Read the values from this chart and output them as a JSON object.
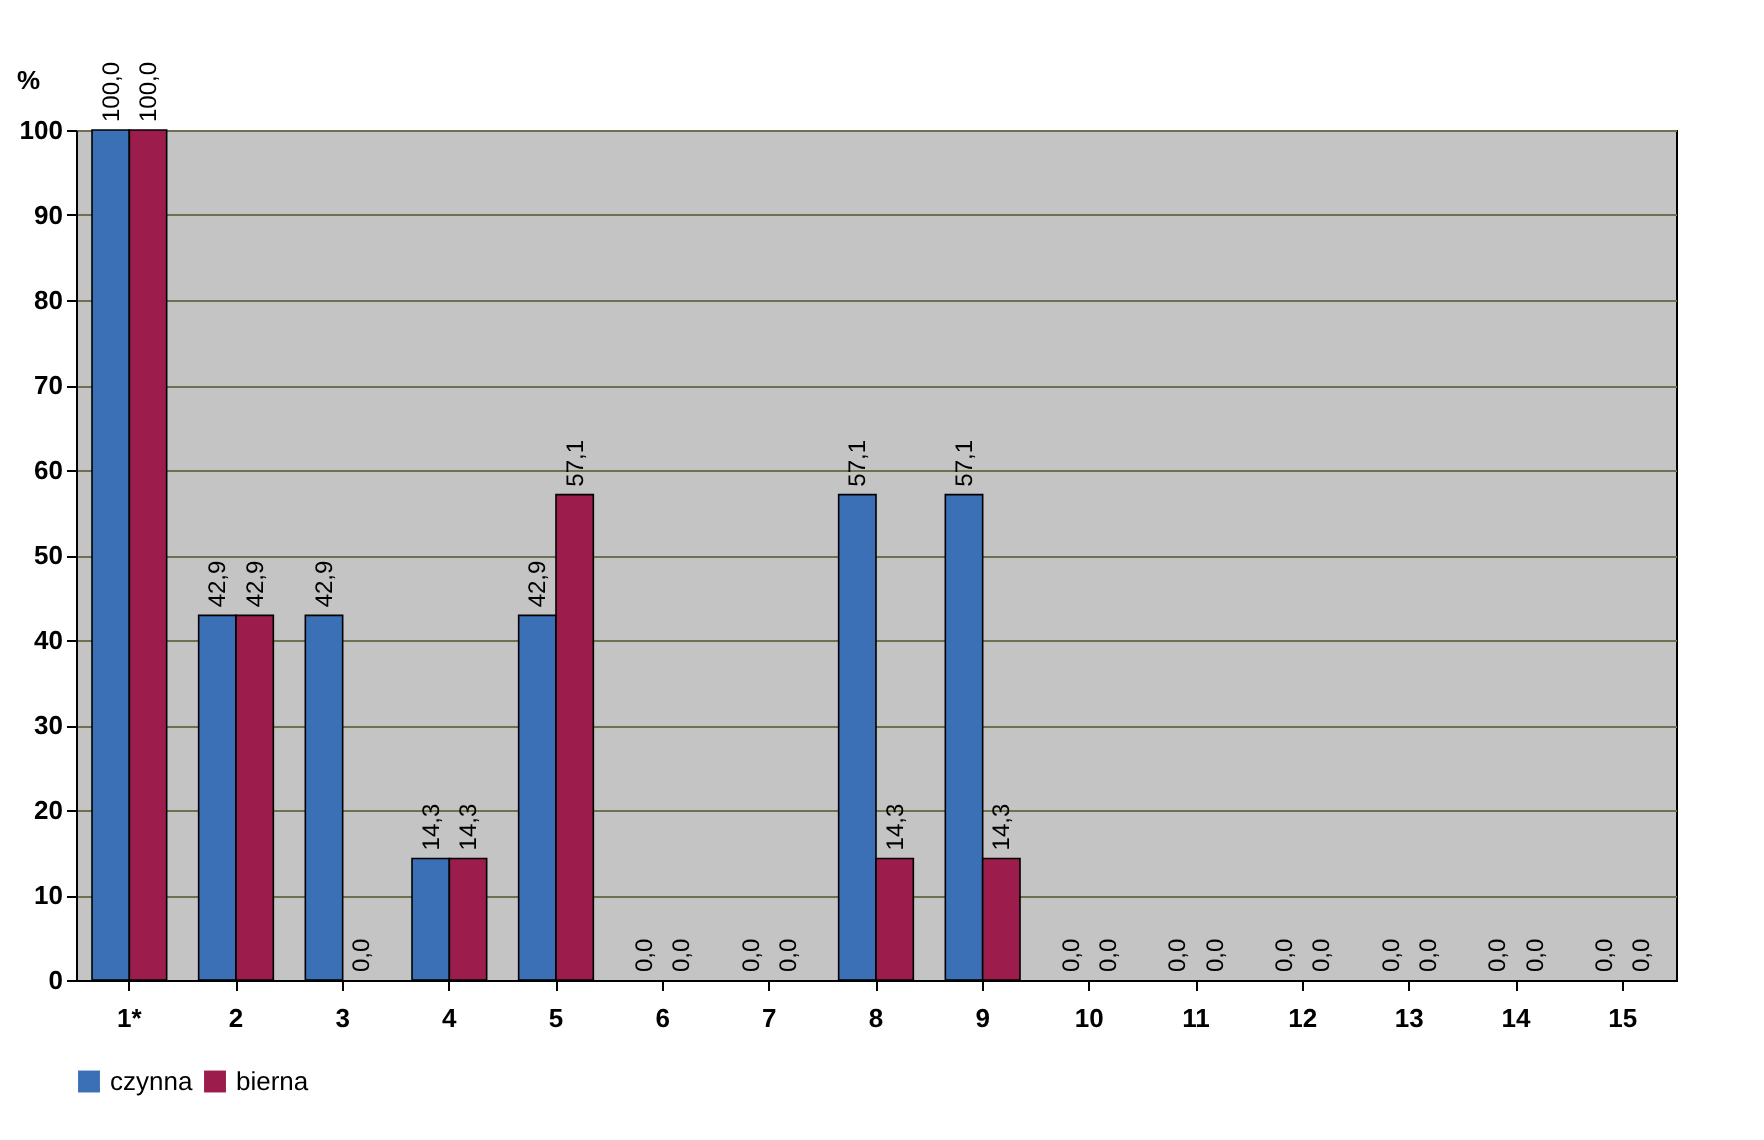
{
  "chart_data": {
    "type": "bar",
    "ylabel": "%",
    "categories": [
      "1*",
      "2",
      "3",
      "4",
      "5",
      "6",
      "7",
      "8",
      "9",
      "10",
      "11",
      "12",
      "13",
      "14",
      "15"
    ],
    "series": [
      {
        "name": "czynna",
        "color": "#3b6fb6",
        "values": [
          100,
          42.9,
          42.9,
          14.3,
          42.9,
          0,
          0,
          57.1,
          57.1,
          0,
          0,
          0,
          0,
          0,
          0
        ],
        "value_labels": [
          "100,0",
          "42,9",
          "42,9",
          "14,3",
          "42,9",
          "0,0",
          "0,0",
          "57,1",
          "57,1",
          "0,0",
          "0,0",
          "0,0",
          "0,0",
          "0,0",
          "0,0"
        ]
      },
      {
        "name": "bierna",
        "color": "#9c1c4c",
        "values": [
          100,
          42.9,
          0,
          14.3,
          57.1,
          0,
          0,
          14.3,
          14.3,
          0,
          0,
          0,
          0,
          0,
          0
        ],
        "value_labels": [
          "100,0",
          "42,9",
          "0,0",
          "14,3",
          "57,1",
          "0,0",
          "0,0",
          "14,3",
          "14,3",
          "0,0",
          "0,0",
          "0,0",
          "0,0",
          "0,0",
          "0,0"
        ]
      }
    ],
    "ylim": [
      0,
      100
    ],
    "yticks": [
      0,
      10,
      20,
      30,
      40,
      50,
      60,
      70,
      80,
      90,
      100
    ],
    "grid": "y",
    "legend": "bottom"
  }
}
